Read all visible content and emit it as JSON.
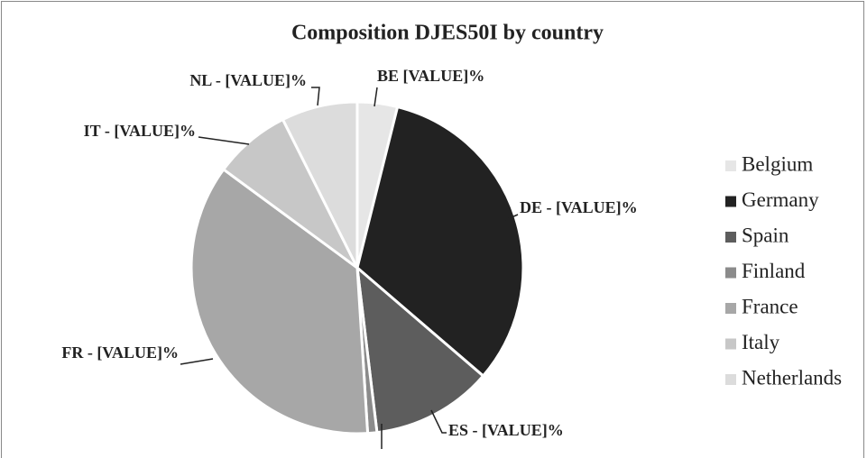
{
  "chart_data": {
    "type": "pie",
    "title": "Composition DJES50I by country",
    "categories": [
      "Belgium",
      "Germany",
      "Spain",
      "Finland",
      "France",
      "Italy",
      "Netherlands"
    ],
    "values": [
      3.9,
      32.4,
      11.8,
      0.9,
      36.1,
      7.5,
      7.4
    ],
    "value_labels": [
      "BE [VALUE]%",
      "DE - [VALUE]%",
      "ES - [VALUE]%",
      null,
      "FR - [VALUE]%",
      "IT - [VALUE]%",
      "NL - [VALUE]%"
    ],
    "colors": [
      "#e6e6e6",
      "#222222",
      "#5d5d5d",
      "#8b8b8b",
      "#a7a7a7",
      "#c7c7c7",
      "#dcdcdc"
    ],
    "legend": "right"
  }
}
